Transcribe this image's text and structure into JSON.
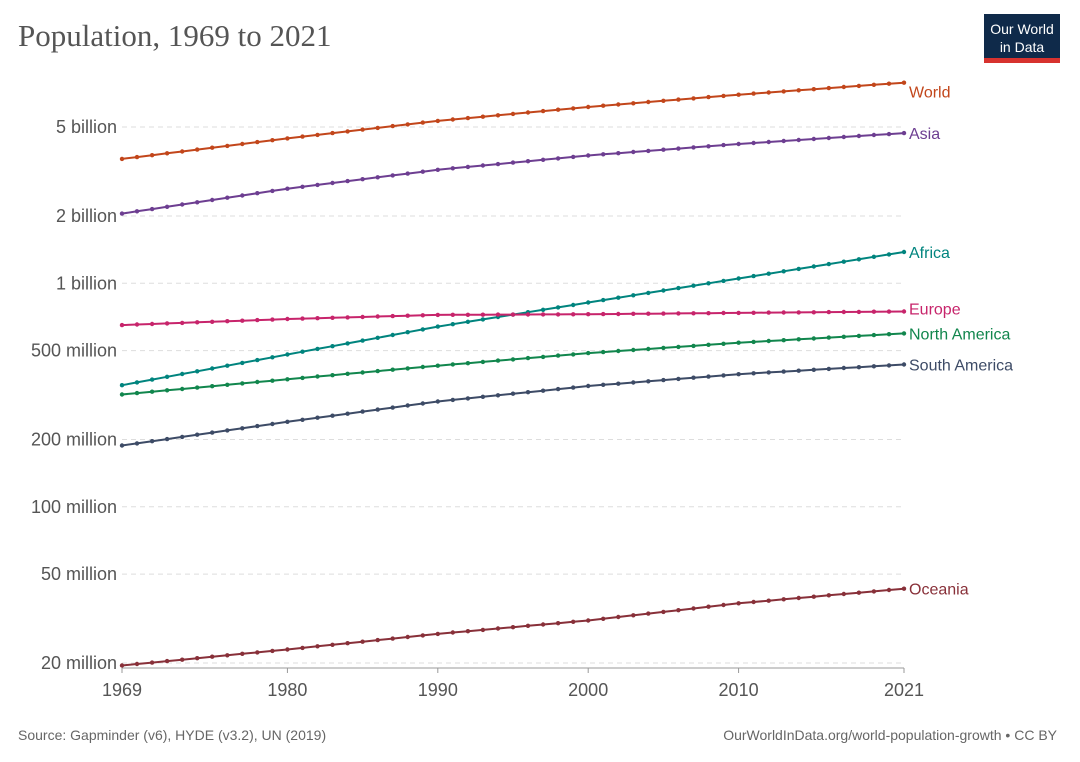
{
  "chart_data": {
    "type": "line",
    "title": "Population, 1969 to 2021",
    "y_scale": "log",
    "ylim": [
      19000000,
      9000000000
    ],
    "xlim": [
      1969,
      2021
    ],
    "x_ticks": [
      {
        "value": 1969,
        "label": "1969"
      },
      {
        "value": 1980,
        "label": "1980"
      },
      {
        "value": 1990,
        "label": "1990"
      },
      {
        "value": 2000,
        "label": "2000"
      },
      {
        "value": 2010,
        "label": "2010"
      },
      {
        "value": 2021,
        "label": "2021"
      }
    ],
    "y_ticks": [
      {
        "value": 20000000,
        "label": "20 million"
      },
      {
        "value": 50000000,
        "label": "50 million"
      },
      {
        "value": 100000000,
        "label": "100 million"
      },
      {
        "value": 200000000,
        "label": "200 million"
      },
      {
        "value": 500000000,
        "label": "500 million"
      },
      {
        "value": 1000000000,
        "label": "1 billion"
      },
      {
        "value": 2000000000,
        "label": "2 billion"
      },
      {
        "value": 5000000000,
        "label": "5 billion"
      }
    ],
    "grid": true,
    "legend": "labels at line ends",
    "series": [
      {
        "name": "World",
        "color": "#c2461b",
        "points": [
          [
            1969,
            3600000000
          ],
          [
            1980,
            4450000000
          ],
          [
            1990,
            5330000000
          ],
          [
            2000,
            6150000000
          ],
          [
            2010,
            6980000000
          ],
          [
            2021,
            7900000000
          ]
        ]
      },
      {
        "name": "Asia",
        "color": "#6d3e91",
        "points": [
          [
            1969,
            2050000000
          ],
          [
            1980,
            2650000000
          ],
          [
            1990,
            3220000000
          ],
          [
            2000,
            3730000000
          ],
          [
            2010,
            4200000000
          ],
          [
            2021,
            4700000000
          ]
        ]
      },
      {
        "name": "Africa",
        "color": "#00847e",
        "points": [
          [
            1969,
            350000000
          ],
          [
            1980,
            480000000
          ],
          [
            1990,
            640000000
          ],
          [
            2000,
            820000000
          ],
          [
            2010,
            1050000000
          ],
          [
            2021,
            1380000000
          ]
        ]
      },
      {
        "name": "Europe",
        "color": "#c7246b",
        "points": [
          [
            1969,
            650000000
          ],
          [
            1980,
            692000000
          ],
          [
            1990,
            722000000
          ],
          [
            2000,
            727000000
          ],
          [
            2010,
            737000000
          ],
          [
            2021,
            748000000
          ]
        ]
      },
      {
        "name": "North America",
        "color": "#11864d",
        "points": [
          [
            1969,
            318000000
          ],
          [
            1980,
            372000000
          ],
          [
            1990,
            428000000
          ],
          [
            2000,
            487000000
          ],
          [
            2010,
            542000000
          ],
          [
            2021,
            597000000
          ]
        ]
      },
      {
        "name": "South America",
        "color": "#3d4b66",
        "points": [
          [
            1969,
            188000000
          ],
          [
            1980,
            240000000
          ],
          [
            1990,
            296000000
          ],
          [
            2000,
            347000000
          ],
          [
            2010,
            392000000
          ],
          [
            2021,
            433000000
          ]
        ]
      },
      {
        "name": "Oceania",
        "color": "#883039",
        "points": [
          [
            1969,
            19500000
          ],
          [
            1980,
            23000000
          ],
          [
            1990,
            27000000
          ],
          [
            2000,
            31000000
          ],
          [
            2010,
            37000000
          ],
          [
            2021,
            43000000
          ]
        ]
      }
    ]
  },
  "logo": {
    "line1": "Our World",
    "line2": "in Data",
    "bg_color": "#0f2a4a",
    "accent_color": "#d7322f"
  },
  "footer": {
    "source": "Source: Gapminder (v6), HYDE (v3.2), UN (2019)",
    "credit": "OurWorldInData.org/world-population-growth • CC BY"
  }
}
